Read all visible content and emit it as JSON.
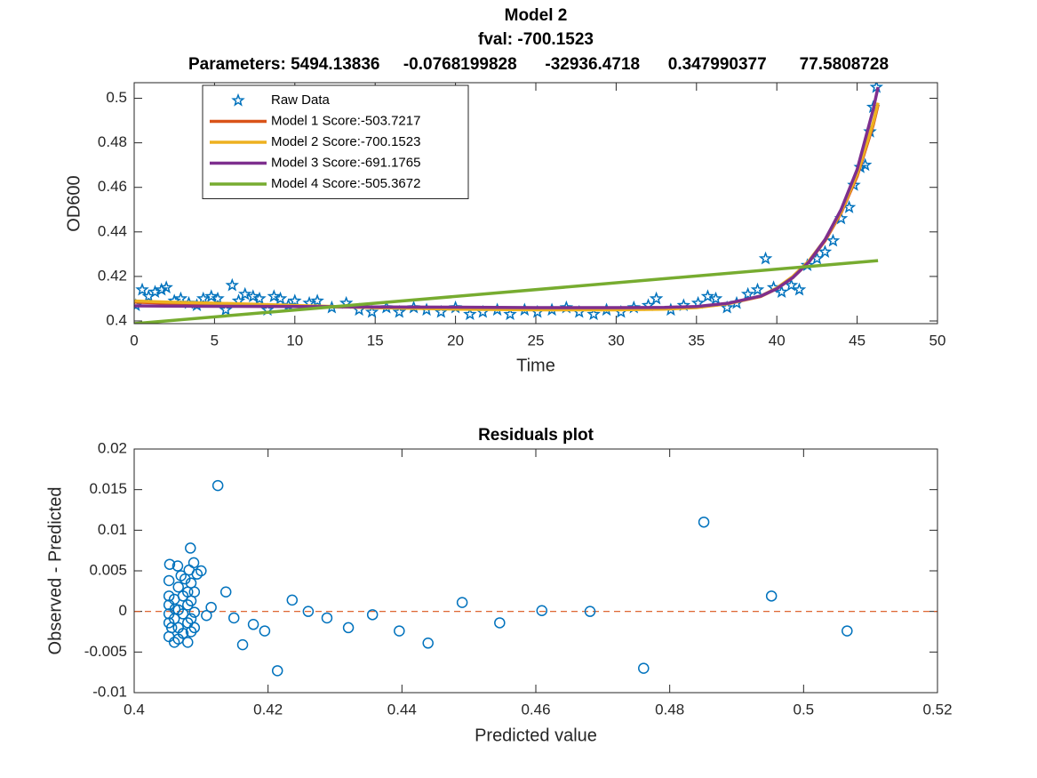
{
  "chart_data": [
    {
      "type": "line",
      "title": "Model 2",
      "subtitle": "fval: -700.1523",
      "parameters": "Parameters: 5494.13836     -0.0768199828      -32936.4718      0.347990377       77.5808728",
      "x_label": "Time",
      "y_label": "OD600",
      "xlim": [
        0,
        50
      ],
      "xticks": [
        0,
        5,
        10,
        15,
        20,
        25,
        30,
        35,
        40,
        45,
        50
      ],
      "ylim": [
        0.3988,
        0.507
      ],
      "yticks": [
        0.4,
        0.42,
        0.44,
        0.46,
        0.48,
        0.5
      ],
      "grid": false,
      "legend": "upper left",
      "series": [
        {
          "name": "Raw Data",
          "color": "#0072BD",
          "mode": "markers",
          "marker": "star",
          "x": [
            0.1,
            0.5,
            0.9,
            1.3,
            1.7,
            2.0,
            2.5,
            2.9,
            3.4,
            3.9,
            4.3,
            4.8,
            5.2,
            5.7,
            6.1,
            6.5,
            6.9,
            7.4,
            7.8,
            8.3,
            8.7,
            9.1,
            9.6,
            10.0,
            10.9,
            11.4,
            12.3,
            13.2,
            14.0,
            14.8,
            15.7,
            16.5,
            17.4,
            18.2,
            19.1,
            20.0,
            20.9,
            21.7,
            22.6,
            23.4,
            24.3,
            25.1,
            26.0,
            26.9,
            27.7,
            28.6,
            29.4,
            30.3,
            31.1,
            32.0,
            32.5,
            33.4,
            34.2,
            35.1,
            35.7,
            36.2,
            36.9,
            37.5,
            38.2,
            38.8,
            39.3,
            39.8,
            40.3,
            40.9,
            41.4,
            41.9,
            42.5,
            43.0,
            43.5,
            44.0,
            44.5,
            44.8,
            45.2,
            45.5,
            45.8,
            46.0,
            46.2
          ],
          "values": [
            0.407,
            0.414,
            0.411,
            0.413,
            0.414,
            0.415,
            0.409,
            0.41,
            0.408,
            0.407,
            0.41,
            0.411,
            0.41,
            0.405,
            0.416,
            0.409,
            0.412,
            0.411,
            0.41,
            0.405,
            0.411,
            0.41,
            0.407,
            0.409,
            0.408,
            0.409,
            0.406,
            0.408,
            0.405,
            0.404,
            0.406,
            0.404,
            0.406,
            0.405,
            0.404,
            0.406,
            0.403,
            0.404,
            0.405,
            0.403,
            0.405,
            0.404,
            0.405,
            0.406,
            0.404,
            0.403,
            0.405,
            0.404,
            0.406,
            0.407,
            0.41,
            0.405,
            0.407,
            0.408,
            0.411,
            0.41,
            0.406,
            0.408,
            0.412,
            0.414,
            0.428,
            0.415,
            0.413,
            0.416,
            0.414,
            0.425,
            0.428,
            0.431,
            0.436,
            0.446,
            0.451,
            0.461,
            0.469,
            0.47,
            0.485,
            0.496,
            0.505
          ]
        },
        {
          "name": "Model 1 Score:-503.7217",
          "color": "#D95319",
          "mode": "lines",
          "x": [
            0,
            2,
            5,
            10,
            15,
            20,
            25,
            30,
            33,
            35,
            37,
            39,
            40,
            41,
            42,
            43,
            44,
            45,
            46,
            46.3
          ],
          "values": [
            0.4085,
            0.408,
            0.4075,
            0.4068,
            0.406,
            0.4055,
            0.4052,
            0.4052,
            0.4055,
            0.4062,
            0.4078,
            0.411,
            0.4145,
            0.4195,
            0.4265,
            0.436,
            0.4485,
            0.465,
            0.488,
            0.497
          ]
        },
        {
          "name": "Model 2 Score:-700.1523",
          "color": "#EDB120",
          "mode": "lines",
          "x": [
            0,
            2,
            5,
            10,
            15,
            20,
            25,
            30,
            33,
            35,
            37,
            39,
            40,
            41,
            42,
            43,
            44,
            45,
            46,
            46.3
          ],
          "values": [
            0.409,
            0.4085,
            0.408,
            0.407,
            0.406,
            0.4053,
            0.405,
            0.405,
            0.4053,
            0.406,
            0.4078,
            0.4112,
            0.4148,
            0.42,
            0.427,
            0.4365,
            0.449,
            0.466,
            0.489,
            0.498
          ]
        },
        {
          "name": "Model 3 Score:-691.1765",
          "color": "#7E2F8E",
          "mode": "lines",
          "x": [
            0,
            2,
            5,
            10,
            15,
            20,
            25,
            30,
            33,
            35,
            37,
            39,
            40,
            41,
            42,
            43,
            44,
            45,
            46,
            46.3
          ],
          "values": [
            0.4068,
            0.4067,
            0.4066,
            0.4065,
            0.4063,
            0.4062,
            0.406,
            0.406,
            0.4061,
            0.4065,
            0.408,
            0.4112,
            0.4145,
            0.4195,
            0.4265,
            0.4365,
            0.45,
            0.468,
            0.495,
            0.505
          ]
        },
        {
          "name": "Model 4 Score:-505.3672",
          "color": "#77AC30",
          "mode": "lines",
          "x": [
            0,
            46.3
          ],
          "values": [
            0.3988,
            0.4271
          ]
        }
      ]
    },
    {
      "type": "scatter",
      "title": "Residuals plot",
      "x_label": "Predicted value",
      "y_label": "Observed - Predicted",
      "xlim": [
        0.4,
        0.52
      ],
      "xticks": [
        0.4,
        0.42,
        0.44,
        0.46,
        0.48,
        0.5,
        0.52
      ],
      "ylim": [
        -0.01,
        0.02
      ],
      "yticks": [
        -0.01,
        -0.005,
        0,
        0.005,
        0.01,
        0.015,
        0.02
      ],
      "grid": false,
      "hline": {
        "value": 0,
        "color": "#D95319"
      },
      "series": [
        {
          "color": "#0072BD",
          "marker": "circle",
          "x": [
            0.4125,
            0.4851,
            0.4952,
            0.5065,
            0.4761,
            0.4681,
            0.4609,
            0.4546,
            0.449,
            0.4439,
            0.4396,
            0.4356,
            0.432,
            0.4288,
            0.426,
            0.4236,
            0.4214,
            0.4195,
            0.4178,
            0.4162,
            0.4149,
            0.4137,
            0.4115,
            0.4108,
            0.4053,
            0.4065,
            0.4084,
            0.4089,
            0.41,
            0.4094,
            0.4052,
            0.407,
            0.4052,
            0.4052,
            0.4052,
            0.4052,
            0.4052,
            0.406,
            0.406,
            0.406,
            0.4066,
            0.4066,
            0.4066,
            0.4066,
            0.4073,
            0.4073,
            0.4073,
            0.408,
            0.408,
            0.408,
            0.408,
            0.4085,
            0.4085,
            0.4085,
            0.4085,
            0.409,
            0.409,
            0.409,
            0.4061,
            0.4056,
            0.4076,
            0.4082
          ],
          "values": [
            0.0155,
            0.011,
            0.0019,
            -0.0024,
            -0.007,
            0,
            0.0001,
            -0.0014,
            0.0011,
            -0.0039,
            -0.0024,
            -0.0004,
            -0.002,
            -0.0008,
            0,
            0.0014,
            -0.0073,
            -0.0024,
            -0.0016,
            -0.0041,
            -0.0008,
            0.0024,
            0.0005,
            -0.0005,
            0.0058,
            0.0056,
            0.0078,
            0.006,
            0.005,
            0.0046,
            0.0038,
            0.0044,
            0.0019,
            0.0008,
            -0.0003,
            -0.0014,
            -0.0031,
            0.0015,
            -0.0009,
            -0.0038,
            0.003,
            0.0002,
            -0.002,
            -0.0034,
            0.0019,
            -0.0003,
            -0.0027,
            0.0024,
            0.0008,
            -0.0014,
            -0.0038,
            0.0035,
            0.0013,
            -0.0009,
            -0.0025,
            0.0024,
            -0.0001,
            -0.002,
            0.0003,
            -0.002,
            0.004,
            0.0051
          ]
        }
      ]
    }
  ]
}
